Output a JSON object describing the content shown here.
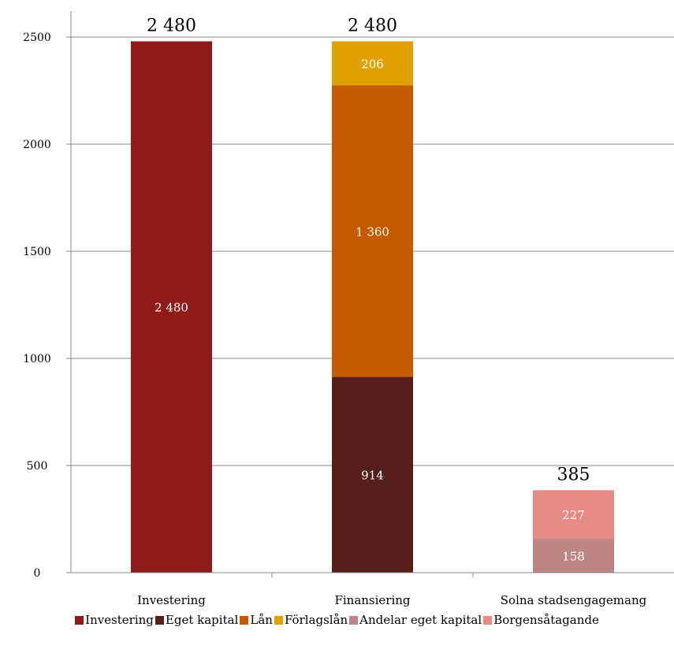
{
  "chart_data": {
    "type": "bar",
    "stacked": true,
    "title": "",
    "xlabel": "",
    "ylabel": "",
    "ylim": [
      0,
      2500
    ],
    "yticks": [
      0,
      500,
      1000,
      1500,
      2000,
      2500
    ],
    "ytick_labels": [
      "0",
      "500",
      "1000",
      "1500",
      "2000",
      "2500"
    ],
    "grid": true,
    "legend_position": "bottom",
    "categories": [
      "Investering",
      "Finansiering",
      "Solna stadsengagemang"
    ],
    "totals": [
      2480,
      2480,
      385
    ],
    "total_labels": [
      "2 480",
      "2 480",
      "385"
    ],
    "series": [
      {
        "name": "Investering",
        "color": "#8f1a1a",
        "values": [
          2480,
          0,
          0
        ],
        "labels": [
          "2 480",
          "",
          ""
        ]
      },
      {
        "name": "Eget kapital",
        "color": "#561f1b",
        "values": [
          0,
          914,
          0
        ],
        "labels": [
          "",
          "914",
          ""
        ]
      },
      {
        "name": "Lån",
        "color": "#c55a00",
        "values": [
          0,
          1360,
          0
        ],
        "labels": [
          "",
          "1 360",
          ""
        ]
      },
      {
        "name": "Förlagslån",
        "color": "#e0a200",
        "values": [
          0,
          206,
          0
        ],
        "labels": [
          "",
          "206",
          ""
        ]
      },
      {
        "name": "Andelar eget kapital",
        "color": "#bd8583",
        "values": [
          0,
          0,
          158
        ],
        "labels": [
          "",
          "",
          "158"
        ]
      },
      {
        "name": "Borgensåtagande",
        "color": "#e68a86",
        "values": [
          0,
          0,
          227
        ],
        "labels": [
          "",
          "",
          "227"
        ]
      }
    ]
  }
}
